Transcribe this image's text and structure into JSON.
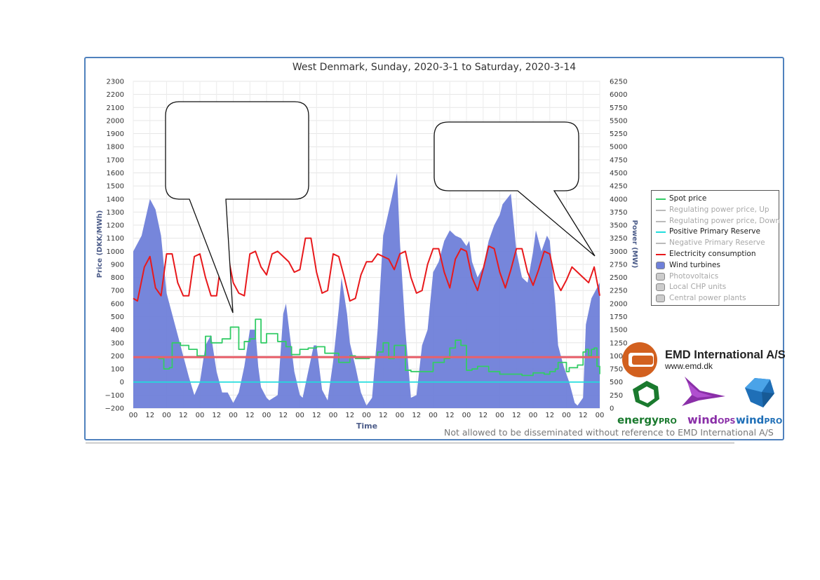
{
  "chart_data": {
    "type": "area",
    "title": "West Denmark, Sunday, 2020-3-1 to Saturday, 2020-3-14",
    "xlabel": "Time",
    "ylabel_left": "Price (DKK/MWh)",
    "ylabel_right": "Power (MW)",
    "x_tick_labels": [
      "00",
      "12",
      "00",
      "12",
      "00",
      "12",
      "00",
      "12",
      "00",
      "12",
      "00",
      "12",
      "00",
      "12",
      "00",
      "12",
      "00",
      "12",
      "00",
      "12",
      "00",
      "12",
      "00",
      "12",
      "00",
      "12",
      "00",
      "12",
      "00"
    ],
    "left_ticks": [
      -200,
      -100,
      0,
      100,
      200,
      300,
      400,
      500,
      600,
      700,
      800,
      900,
      1000,
      1100,
      1200,
      1300,
      1400,
      1500,
      1600,
      1700,
      1800,
      1900,
      2000,
      2100,
      2200,
      2300
    ],
    "right_ticks": [
      0,
      250,
      500,
      750,
      1000,
      1250,
      1500,
      1750,
      2000,
      2250,
      2500,
      2750,
      3000,
      3250,
      3500,
      3750,
      4000,
      4250,
      4500,
      4750,
      5000,
      5250,
      5500,
      5750,
      6000,
      6250
    ],
    "ylim_left": [
      -200,
      2300
    ],
    "ylim_right": [
      0,
      6250
    ],
    "x_unit": "hours since period start (0-336)",
    "series": [
      {
        "name": "Wind turbines",
        "axis": "right",
        "style": "area",
        "color": "#6f80d9",
        "x": [
          0,
          6,
          12,
          16,
          20,
          24,
          30,
          36,
          40,
          44,
          48,
          52,
          56,
          60,
          64,
          68,
          72,
          76,
          80,
          84,
          88,
          90,
          92,
          96,
          98,
          104,
          108,
          110,
          116,
          120,
          122,
          126,
          130,
          132,
          136,
          140,
          144,
          148,
          150,
          154,
          156,
          160,
          164,
          168,
          172,
          176,
          180,
          186,
          190,
          192,
          196,
          200,
          204,
          208,
          212,
          216,
          220,
          224,
          228,
          232,
          236,
          240,
          242,
          244,
          248,
          252,
          256,
          260,
          264,
          266,
          272,
          276,
          280,
          284,
          288,
          290,
          294,
          298,
          300,
          304,
          306,
          310,
          314,
          318,
          320,
          324,
          326,
          330,
          334,
          336
        ],
        "values": [
          3000,
          3300,
          4000,
          3800,
          3300,
          2200,
          1600,
          1000,
          600,
          250,
          500,
          1200,
          1400,
          700,
          300,
          300,
          100,
          300,
          800,
          1500,
          1500,
          800,
          400,
          200,
          150,
          250,
          1800,
          2000,
          700,
          250,
          200,
          700,
          1200,
          1200,
          350,
          150,
          900,
          1900,
          2500,
          1800,
          1250,
          800,
          300,
          50,
          200,
          1500,
          3300,
          4000,
          4500,
          3200,
          1500,
          200,
          250,
          1200,
          1500,
          2600,
          2800,
          3200,
          3400,
          3300,
          3250,
          3100,
          3200,
          2800,
          2500,
          2700,
          3200,
          3500,
          3700,
          3900,
          4100,
          3000,
          2500,
          2400,
          3000,
          3400,
          3000,
          3300,
          3200,
          2000,
          1200,
          800,
          500,
          100,
          50,
          200,
          1600,
          2100,
          2300,
          2400
        ]
      },
      {
        "name": "Electricity consumption",
        "axis": "right",
        "style": "line",
        "color": "#e8191c",
        "x": [
          0,
          3,
          8,
          12,
          16,
          20,
          24,
          28,
          32,
          36,
          40,
          44,
          48,
          52,
          56,
          60,
          64,
          68,
          72,
          76,
          80,
          84,
          88,
          92,
          96,
          100,
          104,
          108,
          112,
          116,
          120,
          124,
          128,
          132,
          136,
          140,
          144,
          148,
          152,
          156,
          160,
          164,
          168,
          172,
          176,
          180,
          184,
          188,
          192,
          196,
          200,
          204,
          208,
          212,
          216,
          220,
          224,
          228,
          232,
          236,
          240,
          244,
          248,
          252,
          256,
          260,
          264,
          268,
          272,
          276,
          280,
          284,
          288,
          292,
          296,
          300,
          304,
          308,
          312,
          316,
          320,
          324,
          328,
          332,
          336
        ],
        "values": [
          2100,
          2050,
          2700,
          2900,
          2300,
          2150,
          2950,
          2950,
          2400,
          2150,
          2150,
          2900,
          2950,
          2500,
          2150,
          2150,
          2950,
          2950,
          2400,
          2200,
          2150,
          2950,
          3000,
          2700,
          2550,
          2950,
          3000,
          2900,
          2800,
          2600,
          2650,
          3250,
          3250,
          2600,
          2200,
          2250,
          2950,
          2900,
          2500,
          2050,
          2100,
          2550,
          2800,
          2800,
          2950,
          2900,
          2850,
          2650,
          2950,
          3000,
          2500,
          2200,
          2250,
          2750,
          3050,
          3050,
          2600,
          2300,
          2850,
          3050,
          3000,
          2500,
          2250,
          2650,
          3100,
          3050,
          2600,
          2300,
          2650,
          3050,
          3050,
          2600,
          2350,
          2650,
          3000,
          2950,
          2450,
          2250,
          2450,
          2700,
          2600,
          2500,
          2400,
          2700,
          2150
        ]
      },
      {
        "name": "Spot price",
        "axis": "left",
        "style": "step",
        "color": "#33cc66",
        "x": [
          0,
          17,
          18,
          22,
          26,
          28,
          34,
          40,
          46,
          52,
          56,
          64,
          70,
          76,
          80,
          84,
          88,
          92,
          96,
          104,
          110,
          114,
          120,
          126,
          132,
          138,
          144,
          148,
          152,
          156,
          160,
          170,
          176,
          180,
          184,
          188,
          196,
          200,
          204,
          212,
          216,
          224,
          228,
          232,
          236,
          240,
          244,
          248,
          256,
          264,
          272,
          280,
          288,
          296,
          300,
          304,
          306,
          312,
          314,
          320,
          324,
          326,
          328,
          330,
          332,
          334,
          336
        ],
        "values": [
          null,
          null,
          180,
          100,
          110,
          300,
          280,
          250,
          200,
          350,
          300,
          330,
          420,
          250,
          310,
          330,
          480,
          300,
          370,
          310,
          270,
          210,
          250,
          260,
          270,
          220,
          220,
          150,
          150,
          200,
          180,
          190,
          230,
          300,
          180,
          280,
          90,
          80,
          80,
          80,
          150,
          180,
          260,
          320,
          280,
          90,
          100,
          120,
          80,
          60,
          60,
          50,
          70,
          60,
          80,
          100,
          150,
          80,
          110,
          130,
          230,
          250,
          200,
          250,
          260,
          120,
          60
        ]
      },
      {
        "name": "Positive Primary Reserve",
        "axis": "left",
        "style": "line",
        "color": "#22dddd",
        "x": [
          0,
          336
        ],
        "values": [
          0,
          0
        ]
      },
      {
        "name": "Reference level",
        "axis": "left",
        "style": "line",
        "color": "#e8606a",
        "x": [
          0,
          336
        ],
        "values": [
          190,
          190
        ]
      }
    ]
  },
  "legend": [
    {
      "label": "Spot price",
      "type": "line",
      "color": "#33cc66",
      "enabled": true
    },
    {
      "label": "Regulating power price, Up",
      "type": "line",
      "color": "#bbbbbb",
      "enabled": false
    },
    {
      "label": "Regulating power price, Down",
      "type": "line",
      "color": "#bbbbbb",
      "enabled": false
    },
    {
      "label": "Positive Primary Reserve",
      "type": "line",
      "color": "#22dddd",
      "enabled": true
    },
    {
      "label": "Negative Primary Reserve",
      "type": "line",
      "color": "#bbbbbb",
      "enabled": false
    },
    {
      "label": "Electricity consumption",
      "type": "line",
      "color": "#e8191c",
      "enabled": true
    },
    {
      "label": "Wind turbines",
      "type": "box",
      "color": "#6f80d9",
      "enabled": true
    },
    {
      "label": "Photovoltaics",
      "type": "box",
      "color": "#cccccc",
      "enabled": false
    },
    {
      "label": "Local CHP units",
      "type": "box",
      "color": "#cccccc",
      "enabled": false
    },
    {
      "label": "Central power plants",
      "type": "box",
      "color": "#cccccc",
      "enabled": false
    }
  ],
  "branding": {
    "company": "EMD International  A/S",
    "url": "www.emd.dk",
    "energypro_a": "energy",
    "energypro_b": "PRO",
    "windops_a": "wind",
    "windops_b": "OPS",
    "windpro_a": "wind",
    "windpro_b": "PRO"
  },
  "disclaimer": "Not allowed to be disseminated without reference to EMD International A/S",
  "colors": {
    "frame": "#4f81bd",
    "axis_title": "#4d5d8a",
    "emd_orange": "#d2601f",
    "energypro_green": "#1a7a2e",
    "windops_purple": "#8a2fa8",
    "windpro_blue": "#1f6fb7"
  }
}
